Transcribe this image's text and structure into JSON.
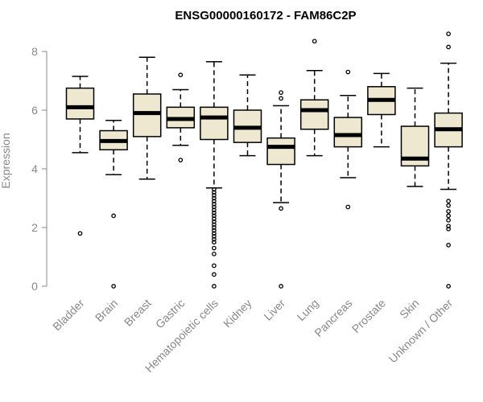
{
  "chart_data": {
    "type": "boxplot",
    "title": "ENSG00000160172 - FAM86C2P",
    "xlabel": "",
    "ylabel": "Expression",
    "ylim": [
      0,
      8.6
    ],
    "yticks": [
      0,
      2,
      4,
      6,
      8
    ],
    "ytick_labels": [
      "0",
      "2",
      "4",
      "6",
      "8"
    ],
    "grid": false,
    "legend": "none",
    "colors": {
      "box_fill": "#efe8d0",
      "stroke": "#000000",
      "axis": "#888888"
    },
    "categories": [
      "Bladder",
      "Brain",
      "Breast",
      "Gastric",
      "Hematopoietic cells",
      "Kidney",
      "Liver",
      "Lung",
      "Pancreas",
      "Prostate",
      "Skin",
      "Unknown / Other"
    ],
    "boxes": [
      {
        "category": "Bladder",
        "whisker_low": 4.55,
        "q1": 5.7,
        "median": 6.1,
        "q3": 6.75,
        "whisker_high": 7.15,
        "outliers": [
          1.8
        ]
      },
      {
        "category": "Brain",
        "whisker_low": 3.8,
        "q1": 4.65,
        "median": 4.95,
        "q3": 5.3,
        "whisker_high": 5.65,
        "outliers": [
          2.4,
          0.0
        ]
      },
      {
        "category": "Breast",
        "whisker_low": 3.65,
        "q1": 5.1,
        "median": 5.9,
        "q3": 6.55,
        "whisker_high": 7.8,
        "outliers": []
      },
      {
        "category": "Gastric",
        "whisker_low": 4.8,
        "q1": 5.4,
        "median": 5.7,
        "q3": 6.1,
        "whisker_high": 6.7,
        "outliers": [
          7.2,
          4.3
        ]
      },
      {
        "category": "Hematopoietic cells",
        "whisker_low": 3.35,
        "q1": 5.0,
        "median": 5.75,
        "q3": 6.1,
        "whisker_high": 7.65,
        "outliers": [
          3.3,
          3.2,
          3.1,
          3.0,
          2.9,
          2.8,
          2.7,
          2.6,
          2.5,
          2.4,
          2.3,
          2.2,
          2.1,
          2.0,
          1.9,
          1.8,
          1.7,
          1.6,
          1.5,
          1.3,
          1.1,
          0.7,
          0.4,
          0.0
        ]
      },
      {
        "category": "Kidney",
        "whisker_low": 4.45,
        "q1": 4.9,
        "median": 5.4,
        "q3": 6.0,
        "whisker_high": 7.2,
        "outliers": []
      },
      {
        "category": "Liver",
        "whisker_low": 2.85,
        "q1": 4.15,
        "median": 4.75,
        "q3": 5.05,
        "whisker_high": 6.15,
        "outliers": [
          6.6,
          6.4,
          2.65,
          0.0
        ]
      },
      {
        "category": "Lung",
        "whisker_low": 4.45,
        "q1": 5.35,
        "median": 6.0,
        "q3": 6.35,
        "whisker_high": 7.35,
        "outliers": [
          8.35
        ]
      },
      {
        "category": "Pancreas",
        "whisker_low": 3.7,
        "q1": 4.75,
        "median": 5.15,
        "q3": 5.75,
        "whisker_high": 6.5,
        "outliers": [
          7.3,
          2.7
        ]
      },
      {
        "category": "Prostate",
        "whisker_low": 4.75,
        "q1": 5.85,
        "median": 6.35,
        "q3": 6.8,
        "whisker_high": 7.25,
        "outliers": []
      },
      {
        "category": "Skin",
        "whisker_low": 3.4,
        "q1": 4.1,
        "median": 4.35,
        "q3": 5.45,
        "whisker_high": 6.75,
        "outliers": []
      },
      {
        "category": "Unknown / Other",
        "whisker_low": 3.3,
        "q1": 4.75,
        "median": 5.35,
        "q3": 5.9,
        "whisker_high": 7.6,
        "outliers": [
          8.6,
          8.15,
          2.9,
          2.75,
          2.55,
          2.4,
          2.25,
          2.05,
          1.95,
          1.4,
          0.0
        ]
      }
    ]
  }
}
